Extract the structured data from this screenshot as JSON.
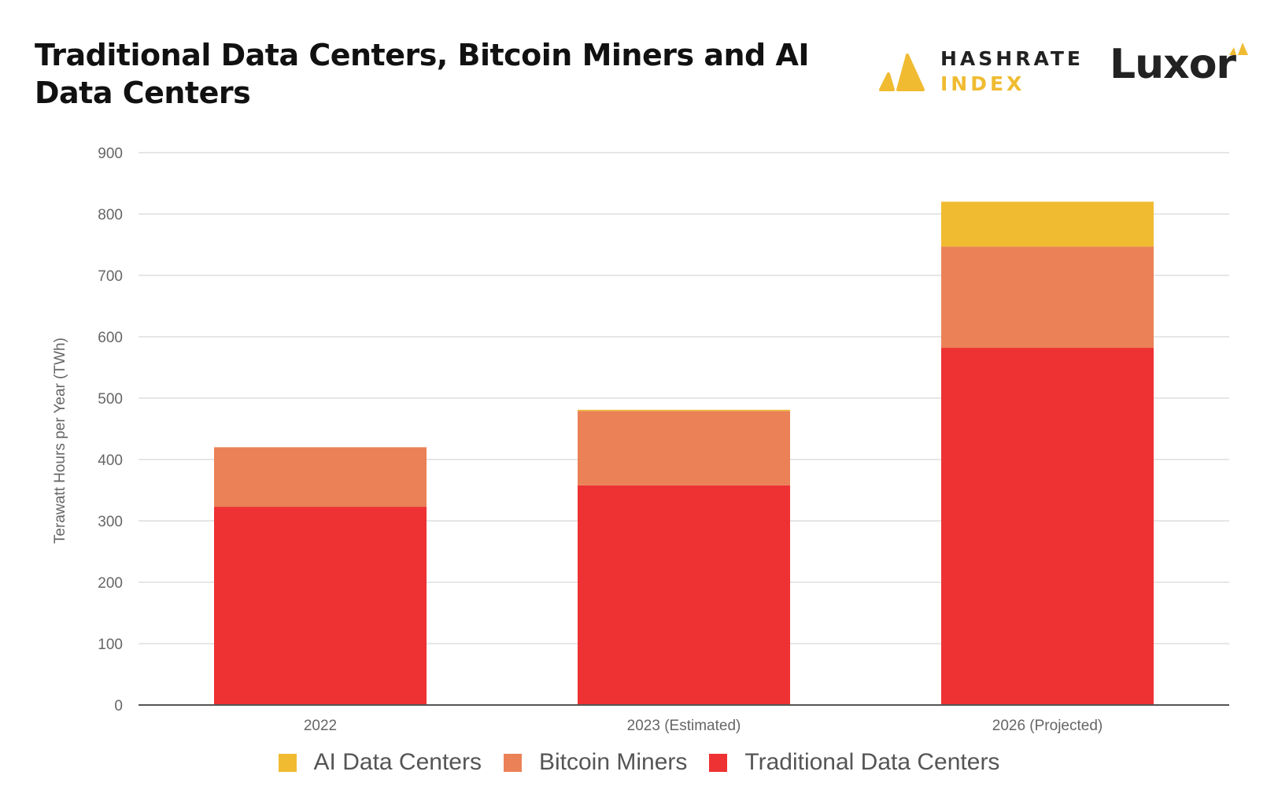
{
  "chart_data": {
    "type": "bar",
    "stacked": true,
    "title": "Traditional Data Centers, Bitcoin Miners and AI Data Centers",
    "xlabel": "",
    "ylabel": "Terawatt Hours per Year (TWh)",
    "ylim": [
      0,
      900
    ],
    "yticks": [
      0,
      100,
      200,
      300,
      400,
      500,
      600,
      700,
      800,
      900
    ],
    "grid": true,
    "legend_position": "bottom",
    "categories": [
      "2022",
      "2023 (Estimated)",
      "2026 (Projected)"
    ],
    "series": [
      {
        "name": "Traditional Data Centers",
        "color": "#ee3233",
        "values": [
          323,
          358,
          582
        ]
      },
      {
        "name": "Bitcoin Miners",
        "color": "#eb8157",
        "values": [
          97,
          121,
          165
        ]
      },
      {
        "name": "AI Data Centers",
        "color": "#f0bb31",
        "values": [
          0,
          2,
          73
        ]
      }
    ],
    "legend_order": [
      "AI Data Centers",
      "Bitcoin Miners",
      "Traditional Data Centers"
    ]
  },
  "logos": {
    "hashrate_top": "HASHRATE",
    "hashrate_bottom": "INDEX",
    "luxor": "Luxor"
  },
  "colors": {
    "accent_yellow": "#f0bb31",
    "gridline": "#dddddd",
    "axis": "#555555"
  }
}
